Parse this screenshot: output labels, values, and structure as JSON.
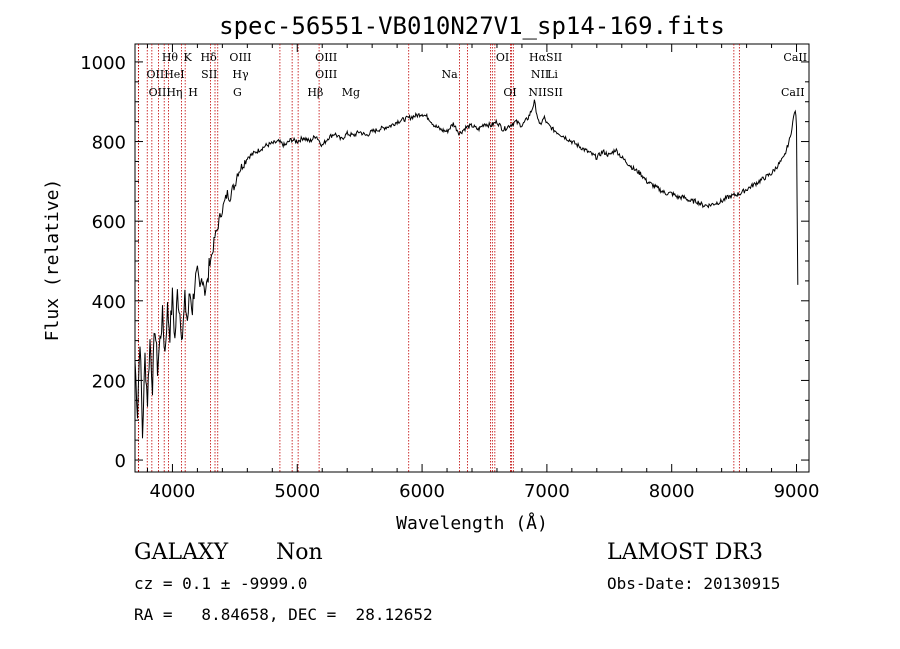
{
  "chart_data": {
    "type": "line",
    "title": "spec-56551-VB010N27V1_sp14-169.fits",
    "xlabel": "Wavelength (Å)",
    "ylabel": "Flux (relative)",
    "xlim": [
      3700,
      9100
    ],
    "ylim": [
      -30,
      1045
    ],
    "xticks": [
      4000,
      5000,
      6000,
      7000,
      8000,
      9000
    ],
    "yticks": [
      0,
      200,
      400,
      600,
      800,
      1000
    ],
    "grid": false,
    "series": [
      {
        "x": [
          3700,
          3720,
          3740,
          3760,
          3780,
          3800,
          3820,
          3840,
          3860,
          3880,
          3900,
          3920,
          3940,
          3960,
          3980,
          4000,
          4020,
          4040,
          4060,
          4080,
          4100,
          4120,
          4140,
          4160,
          4180,
          4200,
          4220,
          4240,
          4260,
          4280,
          4300,
          4320,
          4340,
          4360,
          4380,
          4400,
          4420,
          4440,
          4460,
          4480,
          4500,
          4520,
          4540,
          4560,
          4580,
          4600,
          4650,
          4700,
          4750,
          4800,
          4850,
          4900,
          4950,
          5000,
          5050,
          5100,
          5150,
          5200,
          5250,
          5300,
          5350,
          5400,
          5450,
          5500,
          5550,
          5600,
          5650,
          5700,
          5750,
          5800,
          5850,
          5900,
          5950,
          6000,
          6050,
          6100,
          6150,
          6200,
          6250,
          6300,
          6350,
          6400,
          6450,
          6500,
          6550,
          6600,
          6650,
          6700,
          6750,
          6800,
          6850,
          6880,
          6900,
          6920,
          6940,
          6960,
          6980,
          7000,
          7050,
          7100,
          7150,
          7200,
          7250,
          7300,
          7350,
          7400,
          7450,
          7500,
          7550,
          7600,
          7650,
          7700,
          7750,
          7800,
          7850,
          7900,
          7950,
          8000,
          8050,
          8100,
          8150,
          8200,
          8250,
          8300,
          8350,
          8400,
          8450,
          8500,
          8550,
          8600,
          8650,
          8700,
          8750,
          8800,
          8850,
          8900,
          8950,
          8970,
          8990,
          9000,
          9010
        ],
        "y": [
          250,
          120,
          310,
          60,
          260,
          150,
          300,
          190,
          340,
          230,
          300,
          360,
          270,
          380,
          320,
          410,
          300,
          420,
          370,
          310,
          400,
          350,
          420,
          380,
          450,
          460,
          420,
          470,
          430,
          440,
          500,
          520,
          560,
          580,
          610,
          630,
          650,
          670,
          660,
          680,
          690,
          720,
          730,
          740,
          750,
          760,
          770,
          780,
          790,
          795,
          800,
          790,
          805,
          800,
          810,
          800,
          815,
          790,
          810,
          820,
          805,
          820,
          815,
          825,
          815,
          825,
          830,
          835,
          840,
          850,
          855,
          860,
          865,
          870,
          860,
          840,
          830,
          825,
          845,
          820,
          835,
          840,
          830,
          845,
          840,
          850,
          830,
          840,
          850,
          840,
          860,
          880,
          900,
          870,
          840,
          850,
          860,
          845,
          830,
          820,
          810,
          800,
          790,
          780,
          770,
          760,
          775,
          765,
          780,
          760,
          745,
          730,
          720,
          700,
          690,
          680,
          670,
          670,
          660,
          660,
          650,
          650,
          640,
          640,
          645,
          650,
          660,
          665,
          670,
          680,
          690,
          700,
          710,
          720,
          740,
          760,
          810,
          850,
          880,
          840,
          440
        ]
      }
    ],
    "lines": [
      {
        "label": "OII",
        "x": 3727
      },
      {
        "label": "OII",
        "x": 3729
      },
      {
        "label": "Hθ",
        "x": 3798
      },
      {
        "label": "Hη",
        "x": 3835
      },
      {
        "label": "HeI",
        "x": 3889
      },
      {
        "label": "K",
        "x": 3934
      },
      {
        "label": "H",
        "x": 3969
      },
      {
        "label": "Hδ",
        "x": 4102
      },
      {
        "label": "SII",
        "x": 4072
      },
      {
        "label": "Hγ",
        "x": 4341
      },
      {
        "label": "G",
        "x": 4305
      },
      {
        "label": "OIII",
        "x": 4363
      },
      {
        "label": "Hβ",
        "x": 4861
      },
      {
        "label": "OIII",
        "x": 4959
      },
      {
        "label": "OIII",
        "x": 5007
      },
      {
        "label": "Mg",
        "x": 5175
      },
      {
        "label": "Na",
        "x": 5893
      },
      {
        "label": "OI",
        "x": 6300
      },
      {
        "label": "OI",
        "x": 6364
      },
      {
        "label": "NII",
        "x": 6548
      },
      {
        "label": "Hα",
        "x": 6563
      },
      {
        "label": "NII",
        "x": 6583
      },
      {
        "label": "Li",
        "x": 6708
      },
      {
        "label": "SII",
        "x": 6716
      },
      {
        "label": "SII",
        "x": 6731
      },
      {
        "label": "CaII",
        "x": 8498
      },
      {
        "label": "CaII",
        "x": 8542
      }
    ],
    "line_label_rows": [
      [
        {
          "text": "Hθ",
          "x": 3980
        },
        {
          "text": "K",
          "x": 4122
        },
        {
          "text": "Hδ",
          "x": 4290
        },
        {
          "text": "OIII",
          "x": 4545
        },
        {
          "text": "OIII",
          "x": 5232
        },
        {
          "text": "OI",
          "x": 6645
        },
        {
          "text": "HαSII",
          "x": 6990
        },
        {
          "text": "CaII",
          "x": 8990
        }
      ],
      [
        {
          "text": "OIIHeI",
          "x": 3945
        },
        {
          "text": "SII",
          "x": 4295
        },
        {
          "text": "Hγ",
          "x": 4545
        },
        {
          "text": "OIII",
          "x": 5232
        },
        {
          "text": "Na",
          "x": 6220
        },
        {
          "text": "NII",
          "x": 6945
        },
        {
          "text": "Li",
          "x": 7045
        }
      ],
      [
        {
          "text": "OIIHη",
          "x": 3945
        },
        {
          "text": "H",
          "x": 4165
        },
        {
          "text": "G",
          "x": 4520
        },
        {
          "text": "Hβ",
          "x": 5145
        },
        {
          "text": "Mg",
          "x": 5430
        },
        {
          "text": "OI",
          "x": 6705
        },
        {
          "text": "NIISII",
          "x": 6990
        },
        {
          "text": "CaII",
          "x": 8970
        }
      ]
    ]
  },
  "info": {
    "object_type": "GALAXY",
    "subclass": "Non",
    "survey": "LAMOST DR3",
    "cz_line": "cz = 0.1 ± -9999.0",
    "obs_date_line": "Obs-Date: 20130915",
    "coords_line": "RA =   8.84658, DEC =  28.12652"
  }
}
